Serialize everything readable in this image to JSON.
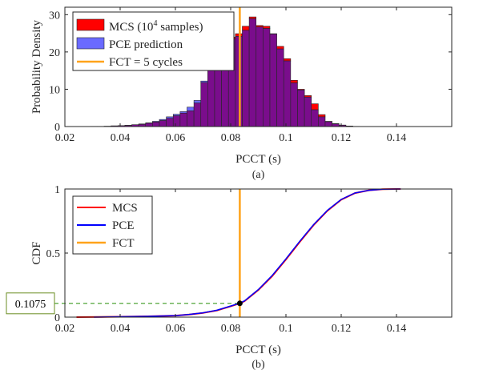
{
  "chart_data": [
    {
      "id": "a",
      "type": "bar",
      "caption": "(a)",
      "xlabel": "PCCT (s)",
      "ylabel": "Probability Density",
      "xlim": [
        0.02,
        0.16
      ],
      "ylim": [
        0,
        32
      ],
      "xticks": [
        0.02,
        0.04,
        0.06,
        0.08,
        0.1,
        0.12,
        0.14
      ],
      "xtick_labels": [
        "0.02",
        "0.04",
        "0.06",
        "0.08",
        "0.1",
        "0.12",
        "0.14"
      ],
      "yticks": [
        0,
        10,
        20,
        30
      ],
      "ytick_labels": [
        "0",
        "10",
        "20",
        "30"
      ],
      "grid": false,
      "legend_position": "top-left",
      "bin_start": 0.0242,
      "bin_width": 0.0025,
      "series": [
        {
          "name": "MCS",
          "name_sup": "4",
          "label_prefix": "MCS (10",
          "label_suffix": " samples)",
          "color": "#ff0000",
          "values": [
            0.03,
            0.03,
            0.05,
            0.05,
            0.1,
            0.2,
            0.25,
            0.3,
            0.5,
            0.6,
            0.9,
            1.2,
            1.6,
            2.2,
            2.9,
            3.6,
            4.2,
            6.3,
            11.8,
            17.0,
            19.2,
            22.9,
            24.0,
            24.9,
            26.9,
            29.4,
            27.1,
            26.9,
            24.8,
            21.5,
            18.2,
            12.4,
            10.0,
            8.3,
            6.1,
            3.2,
            1.4,
            0.8,
            0.4,
            0.15,
            0.05,
            0.02
          ]
        },
        {
          "name": "PCE prediction",
          "color": "#6a6aff",
          "values": [
            0.02,
            0.02,
            0.04,
            0.05,
            0.1,
            0.2,
            0.25,
            0.35,
            0.5,
            0.7,
            1.0,
            1.4,
            1.9,
            2.6,
            3.3,
            4.0,
            5.2,
            7.0,
            12.2,
            16.5,
            18.5,
            22.0,
            23.5,
            24.2,
            25.8,
            28.9,
            26.7,
            26.3,
            24.9,
            20.8,
            17.6,
            11.7,
            9.8,
            7.9,
            4.5,
            2.6,
            1.3,
            0.7,
            0.35,
            0.12,
            0.04,
            0.01
          ]
        }
      ],
      "overlap_color": "#7a0d8c",
      "vline": {
        "name": "FCT = 5 cycles",
        "x": 0.0833,
        "color": "#ffa31a"
      }
    },
    {
      "id": "b",
      "type": "line",
      "caption": "(b)",
      "xlabel": "PCCT (s)",
      "ylabel": "CDF",
      "xlim": [
        0.02,
        0.16
      ],
      "ylim": [
        0,
        1
      ],
      "xticks": [
        0.02,
        0.04,
        0.06,
        0.08,
        0.1,
        0.12,
        0.14
      ],
      "xtick_labels": [
        "0.02",
        "0.04",
        "0.06",
        "0.08",
        "0.1",
        "0.12",
        "0.14"
      ],
      "yticks": [
        0,
        0.5,
        1
      ],
      "ytick_labels": [
        "0",
        "0.5",
        "1"
      ],
      "grid": false,
      "legend_position": "top-left",
      "series": [
        {
          "name": "MCS",
          "color": "#ff0000",
          "x": [
            0.0242,
            0.04,
            0.05,
            0.06,
            0.065,
            0.07,
            0.075,
            0.08,
            0.0833,
            0.085,
            0.09,
            0.095,
            0.1,
            0.105,
            0.11,
            0.115,
            0.12,
            0.125,
            0.13,
            0.135,
            0.14,
            0.1415
          ],
          "y": [
            0,
            0.003,
            0.006,
            0.012,
            0.02,
            0.033,
            0.052,
            0.085,
            0.1075,
            0.125,
            0.212,
            0.32,
            0.45,
            0.587,
            0.718,
            0.83,
            0.917,
            0.968,
            0.99,
            0.998,
            1,
            1
          ]
        },
        {
          "name": "PCE",
          "color": "#0000ff",
          "x": [
            0.0305,
            0.04,
            0.05,
            0.06,
            0.065,
            0.07,
            0.075,
            0.08,
            0.0833,
            0.085,
            0.09,
            0.095,
            0.1,
            0.105,
            0.11,
            0.115,
            0.12,
            0.125,
            0.13,
            0.135,
            0.14,
            0.1415
          ],
          "y": [
            0,
            0.003,
            0.006,
            0.012,
            0.021,
            0.034,
            0.054,
            0.087,
            0.109,
            0.127,
            0.215,
            0.325,
            0.455,
            0.592,
            0.722,
            0.833,
            0.919,
            0.969,
            0.99,
            0.998,
            1,
            1
          ]
        }
      ],
      "vline": {
        "name": "FCT",
        "x": 0.0833,
        "color": "#ffa31a"
      },
      "marker": {
        "x": 0.0833,
        "y": 0.1075
      },
      "annotation": {
        "text": "0.1075",
        "y": 0.1075,
        "guide_color": "#3d9b22",
        "box_color": "#6b8e23"
      }
    }
  ]
}
